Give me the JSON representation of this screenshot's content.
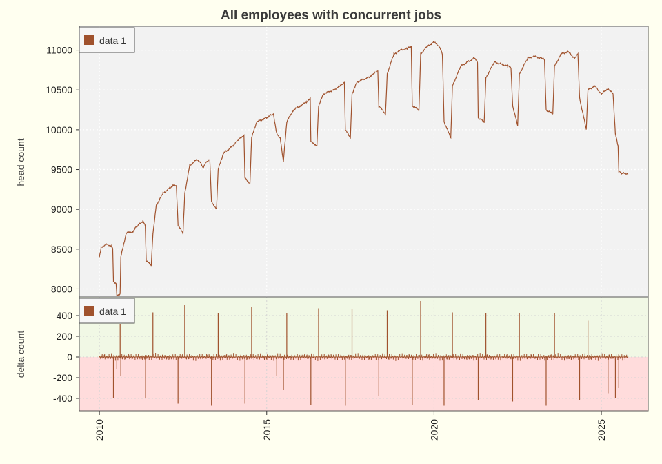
{
  "chart_data": [
    {
      "type": "line",
      "title": "All employees with concurrent jobs",
      "xlabel": "",
      "ylabel": "head count",
      "xlim": [
        2009.4,
        2026.4
      ],
      "ylim": [
        7900,
        11300
      ],
      "y_ticks": [
        8000,
        8500,
        9000,
        9500,
        10000,
        10500,
        11000
      ],
      "grid": true,
      "legend": {
        "position": "top-left",
        "entries": [
          "data 1"
        ]
      },
      "series": [
        {
          "name": "data 1",
          "color": "#a0522d",
          "points": [
            [
              2010.0,
              8400
            ],
            [
              2010.05,
              8520
            ],
            [
              2010.2,
              8560
            ],
            [
              2010.35,
              8540
            ],
            [
              2010.4,
              8500
            ],
            [
              2010.42,
              8100
            ],
            [
              2010.5,
              8060
            ],
            [
              2010.52,
              7920
            ],
            [
              2010.62,
              7940
            ],
            [
              2010.64,
              8400
            ],
            [
              2010.8,
              8700
            ],
            [
              2011.0,
              8720
            ],
            [
              2011.1,
              8780
            ],
            [
              2011.2,
              8820
            ],
            [
              2011.3,
              8850
            ],
            [
              2011.37,
              8800
            ],
            [
              2011.4,
              8350
            ],
            [
              2011.55,
              8300
            ],
            [
              2011.6,
              8700
            ],
            [
              2011.7,
              9050
            ],
            [
              2011.9,
              9200
            ],
            [
              2012.2,
              9300
            ],
            [
              2012.3,
              9300
            ],
            [
              2012.35,
              8800
            ],
            [
              2012.5,
              8700
            ],
            [
              2012.55,
              9200
            ],
            [
              2012.7,
              9550
            ],
            [
              2012.9,
              9620
            ],
            [
              2013.0,
              9600
            ],
            [
              2013.1,
              9520
            ],
            [
              2013.2,
              9600
            ],
            [
              2013.3,
              9620
            ],
            [
              2013.35,
              9100
            ],
            [
              2013.5,
              9000
            ],
            [
              2013.55,
              9500
            ],
            [
              2013.7,
              9700
            ],
            [
              2014.0,
              9800
            ],
            [
              2014.2,
              9900
            ],
            [
              2014.32,
              9920
            ],
            [
              2014.35,
              9400
            ],
            [
              2014.5,
              9320
            ],
            [
              2014.55,
              9900
            ],
            [
              2014.7,
              10100
            ],
            [
              2015.0,
              10150
            ],
            [
              2015.2,
              10200
            ],
            [
              2015.3,
              9950
            ],
            [
              2015.4,
              9900
            ],
            [
              2015.5,
              9600
            ],
            [
              2015.6,
              10100
            ],
            [
              2015.8,
              10250
            ],
            [
              2016.0,
              10300
            ],
            [
              2016.2,
              10350
            ],
            [
              2016.3,
              10400
            ],
            [
              2016.32,
              9850
            ],
            [
              2016.5,
              9800
            ],
            [
              2016.55,
              10300
            ],
            [
              2016.7,
              10450
            ],
            [
              2017.0,
              10500
            ],
            [
              2017.2,
              10550
            ],
            [
              2017.32,
              10600
            ],
            [
              2017.35,
              10000
            ],
            [
              2017.5,
              9900
            ],
            [
              2017.55,
              10450
            ],
            [
              2017.7,
              10600
            ],
            [
              2018.0,
              10650
            ],
            [
              2018.2,
              10700
            ],
            [
              2018.32,
              10750
            ],
            [
              2018.35,
              10300
            ],
            [
              2018.55,
              10200
            ],
            [
              2018.6,
              10700
            ],
            [
              2018.8,
              10950
            ],
            [
              2019.0,
              11000
            ],
            [
              2019.2,
              11020
            ],
            [
              2019.32,
              11050
            ],
            [
              2019.35,
              10300
            ],
            [
              2019.55,
              10250
            ],
            [
              2019.6,
              10950
            ],
            [
              2019.8,
              11050
            ],
            [
              2020.0,
              11100
            ],
            [
              2020.15,
              11050
            ],
            [
              2020.25,
              10950
            ],
            [
              2020.3,
              10100
            ],
            [
              2020.5,
              9900
            ],
            [
              2020.55,
              10550
            ],
            [
              2020.8,
              10800
            ],
            [
              2021.2,
              10900
            ],
            [
              2021.3,
              10850
            ],
            [
              2021.32,
              10150
            ],
            [
              2021.5,
              10100
            ],
            [
              2021.55,
              10650
            ],
            [
              2021.8,
              10850
            ],
            [
              2022.2,
              10800
            ],
            [
              2022.3,
              10780
            ],
            [
              2022.35,
              10300
            ],
            [
              2022.5,
              10050
            ],
            [
              2022.55,
              10700
            ],
            [
              2022.8,
              10900
            ],
            [
              2023.0,
              10920
            ],
            [
              2023.2,
              10900
            ],
            [
              2023.3,
              10880
            ],
            [
              2023.35,
              10250
            ],
            [
              2023.55,
              10200
            ],
            [
              2023.6,
              10800
            ],
            [
              2023.8,
              10950
            ],
            [
              2024.0,
              10980
            ],
            [
              2024.2,
              10900
            ],
            [
              2024.3,
              10950
            ],
            [
              2024.35,
              10400
            ],
            [
              2024.55,
              10000
            ],
            [
              2024.6,
              10500
            ],
            [
              2024.8,
              10550
            ],
            [
              2025.0,
              10450
            ],
            [
              2025.2,
              10520
            ],
            [
              2025.35,
              10450
            ],
            [
              2025.42,
              9950
            ],
            [
              2025.5,
              9800
            ],
            [
              2025.52,
              9480
            ],
            [
              2025.6,
              9450
            ],
            [
              2025.8,
              9450
            ]
          ]
        }
      ]
    },
    {
      "type": "bar",
      "xlabel": "",
      "ylabel": "delta count",
      "xlim": [
        2009.4,
        2026.4
      ],
      "ylim": [
        -520,
        580
      ],
      "y_ticks": [
        -400,
        -200,
        0,
        200,
        400
      ],
      "x_ticks": [
        2010,
        2015,
        2020,
        2025
      ],
      "grid": true,
      "legend": {
        "position": "top-left",
        "entries": [
          "data 1"
        ]
      },
      "positive_region_color": "#f1f8e5",
      "negative_region_color": "#ffdcdc",
      "series": [
        {
          "name": "data 1",
          "color": "#a0522d",
          "spikes": [
            [
              2010.42,
              -400
            ],
            [
              2010.52,
              -120
            ],
            [
              2010.62,
              320
            ],
            [
              2010.64,
              -180
            ],
            [
              2011.38,
              -400
            ],
            [
              2011.6,
              430
            ],
            [
              2012.35,
              -450
            ],
            [
              2012.55,
              500
            ],
            [
              2013.35,
              -470
            ],
            [
              2013.55,
              420
            ],
            [
              2014.35,
              -450
            ],
            [
              2014.55,
              480
            ],
            [
              2015.3,
              -180
            ],
            [
              2015.5,
              -320
            ],
            [
              2015.6,
              420
            ],
            [
              2016.32,
              -460
            ],
            [
              2016.55,
              470
            ],
            [
              2017.35,
              -470
            ],
            [
              2017.55,
              460
            ],
            [
              2018.35,
              -380
            ],
            [
              2018.6,
              450
            ],
            [
              2019.35,
              -460
            ],
            [
              2019.6,
              540
            ],
            [
              2020.3,
              -470
            ],
            [
              2020.55,
              430
            ],
            [
              2021.32,
              -420
            ],
            [
              2021.55,
              420
            ],
            [
              2022.35,
              -430
            ],
            [
              2022.55,
              420
            ],
            [
              2023.35,
              -470
            ],
            [
              2023.6,
              420
            ],
            [
              2024.35,
              -420
            ],
            [
              2024.6,
              350
            ],
            [
              2025.2,
              -350
            ],
            [
              2025.42,
              -400
            ],
            [
              2025.52,
              -300
            ]
          ],
          "noise_amplitude": 40
        }
      ]
    }
  ]
}
